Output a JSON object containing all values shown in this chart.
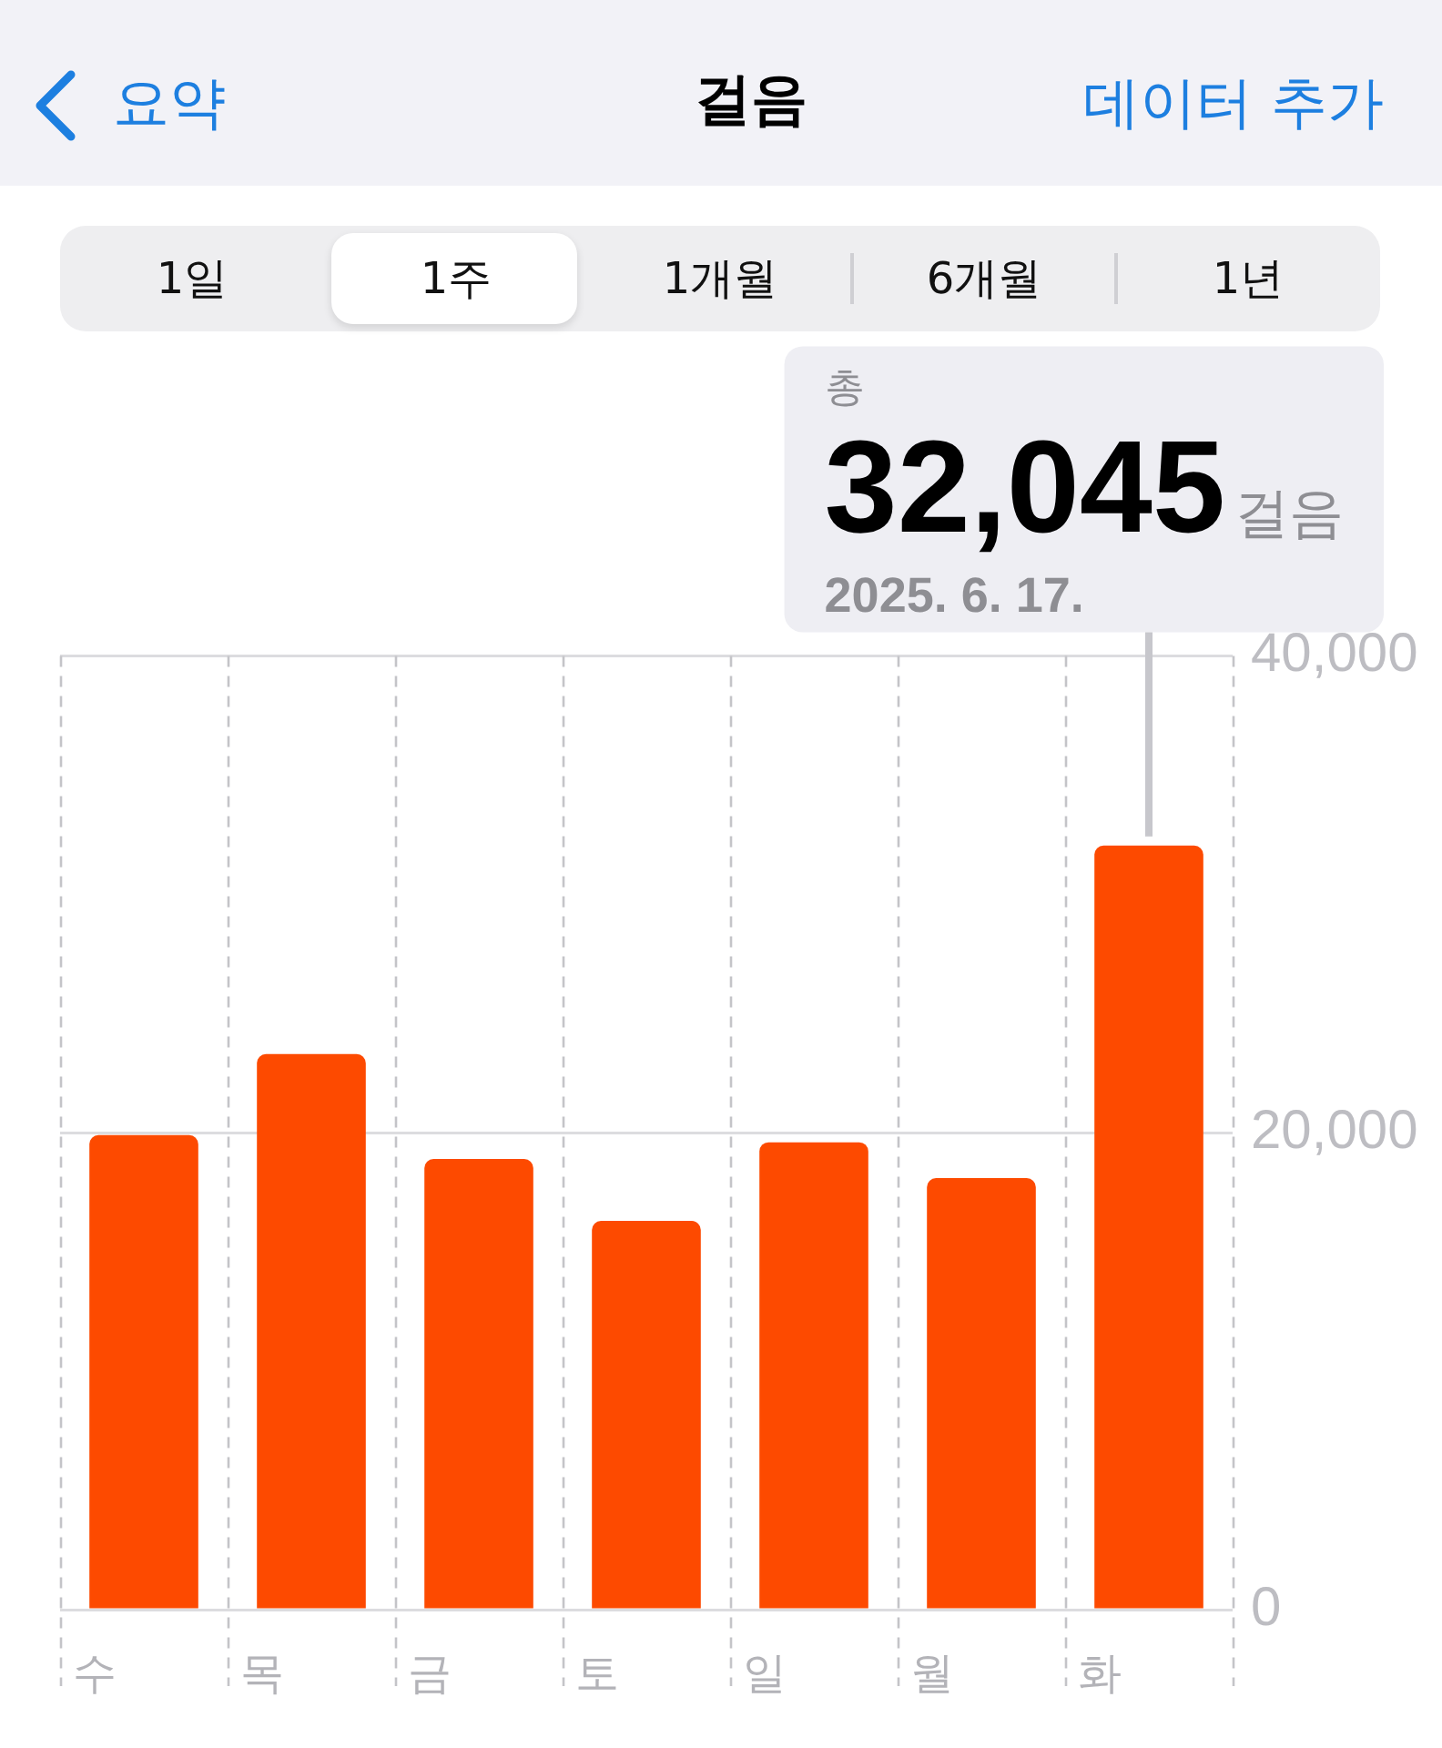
{
  "chart_data": {
    "type": "bar",
    "title": "걸음",
    "categories": [
      "수",
      "목",
      "금",
      "토",
      "일",
      "월",
      "화"
    ],
    "values": [
      19900,
      23300,
      18900,
      16300,
      19600,
      18100,
      32045
    ],
    "color": "#fd4a00",
    "ylim": [
      0,
      40000
    ],
    "yticks": [
      0,
      {
        "value": 20000,
        "label": "20,000"
      },
      {
        "value": 40000,
        "label": "40,000"
      }
    ],
    "grid": true,
    "annotations": [
      "요약",
      "데이터 추가",
      "1일",
      "1주",
      "1개월",
      "6개월",
      "1년",
      "총",
      {
        "text": "32,045",
        "x": "화",
        "y": 32045
      },
      "걸음",
      "2025. 6. 17."
    ]
  }
}
